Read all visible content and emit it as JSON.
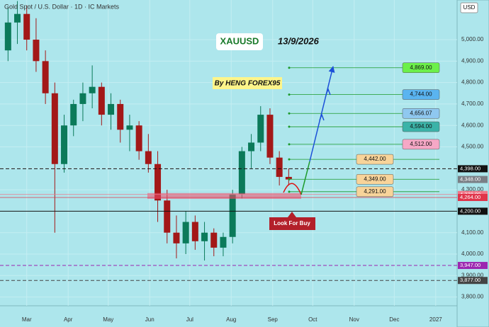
{
  "header": "Gold Spot / U.S. Dollar · 1D · IC Markets",
  "currency": "USD",
  "chart_data": {
    "type": "candlestick",
    "title": "XAUUSD",
    "date": "13/9/2026",
    "author": "By HENG FOREX95",
    "annotation": "Look For Buy",
    "xlim": [
      -20,
      322
    ],
    "xticks": [
      {
        "value": 0,
        "label": "Mar"
      },
      {
        "value": 31,
        "label": "Apr"
      },
      {
        "value": 61,
        "label": "May"
      },
      {
        "value": 92,
        "label": "Jun"
      },
      {
        "value": 122,
        "label": "Jul"
      },
      {
        "value": 153,
        "label": "Aug"
      },
      {
        "value": 184,
        "label": "Sep"
      },
      {
        "value": 214,
        "label": "Oct"
      },
      {
        "value": 245,
        "label": "Nov"
      },
      {
        "value": 275,
        "label": "Dec"
      },
      {
        "value": 306,
        "label": "2027"
      }
    ],
    "ylim": [
      3759,
      5185
    ],
    "yticks": [
      {
        "value": 3800,
        "label": "3,800.00"
      },
      {
        "value": 3900,
        "label": "3,900.00"
      },
      {
        "value": 4000,
        "label": "4,000.00"
      },
      {
        "value": 4100,
        "label": "4,100.00"
      },
      {
        "value": 4200,
        "label": "4,200.00"
      },
      {
        "value": 4300,
        "label": "4,300.00"
      },
      {
        "value": 4400,
        "label": "4,400.00"
      },
      {
        "value": 4500,
        "label": "4,500.00"
      },
      {
        "value": 4600,
        "label": "4,600.00"
      },
      {
        "value": 4700,
        "label": "4,700.00"
      },
      {
        "value": 4800,
        "label": "4,800.00"
      },
      {
        "value": 4900,
        "label": "4,900.00"
      },
      {
        "value": 5000,
        "label": "5,000.00"
      }
    ],
    "grid": true,
    "up_color": "#0b7a5a",
    "down_color": "#a31818",
    "candles": {
      "x": [
        -14,
        -7,
        0,
        7,
        14,
        21,
        28,
        35,
        42,
        49,
        56,
        63,
        70,
        77,
        84,
        91,
        98,
        105,
        112,
        119,
        126,
        133,
        140,
        147,
        154,
        161,
        168,
        175,
        182,
        189,
        196
      ],
      "open": [
        4950,
        5080,
        5120,
        5000,
        4900,
        4750,
        4420,
        4600,
        4700,
        4750,
        4780,
        4650,
        4700,
        4580,
        4600,
        4480,
        4420,
        4250,
        4100,
        4050,
        4150,
        4060,
        4100,
        4030,
        4080,
        4280,
        4480,
        4520,
        4650,
        4450,
        4360
      ],
      "high": [
        5150,
        5180,
        5160,
        5100,
        4950,
        4800,
        4650,
        4720,
        4800,
        4880,
        4800,
        4750,
        4720,
        4650,
        4620,
        4560,
        4480,
        4300,
        4180,
        4200,
        4180,
        4150,
        4120,
        4100,
        4300,
        4500,
        4560,
        4690,
        4680,
        4480,
        4400
      ],
      "low": [
        4900,
        4980,
        4950,
        4850,
        4700,
        4100,
        4380,
        4550,
        4620,
        4680,
        4600,
        4580,
        4520,
        4480,
        4440,
        4380,
        4150,
        4050,
        3980,
        4000,
        4020,
        3970,
        3990,
        3990,
        4050,
        4260,
        4400,
        4480,
        4420,
        4320,
        4320
      ],
      "close": [
        5080,
        5120,
        5000,
        4900,
        4750,
        4420,
        4600,
        4700,
        4750,
        4780,
        4650,
        4700,
        4580,
        4600,
        4480,
        4420,
        4250,
        4100,
        4050,
        4150,
        4060,
        4100,
        4030,
        4080,
        4280,
        4480,
        4520,
        4650,
        4450,
        4360,
        4348
      ]
    },
    "levels": [
      {
        "value": 4398,
        "label": "4,398.00",
        "color": "#111111",
        "style": "dashed"
      },
      {
        "value": 4348,
        "label": "4,348.00",
        "color": "#7a7f86",
        "style": "none"
      },
      {
        "value": 4278,
        "label": "4,278.00",
        "color": "#f0788a",
        "style": "zone"
      },
      {
        "value": 4264,
        "label": "4,264.00",
        "color": "#e0344a",
        "style": "zone"
      },
      {
        "value": 4200,
        "label": "4,200.00",
        "color": "#111111",
        "style": "solid"
      },
      {
        "value": 3947,
        "label": "3,947.00",
        "color": "#9c27b0",
        "style": "dashed"
      },
      {
        "value": 3877,
        "label": "3,877.00",
        "color": "#444444",
        "style": "dashed"
      }
    ],
    "targets": [
      {
        "value": 4869,
        "label": "4,869.00",
        "color": "#6cf04a"
      },
      {
        "value": 4744,
        "label": "4,744.00",
        "color": "#5ab4f0"
      },
      {
        "value": 4656.07,
        "label": "4,656.07",
        "color": "#8fc8f0"
      },
      {
        "value": 4594,
        "label": "4,594.00",
        "color": "#3bb3a8"
      },
      {
        "value": 4512,
        "label": "4,512.00",
        "color": "#f6a8c6"
      },
      {
        "value": 4442,
        "label": "4,442.00",
        "color": "#f8d49a"
      },
      {
        "value": 4349,
        "label": "4,349.00",
        "color": "#f8d49a"
      },
      {
        "value": 4291,
        "label": "4,291.00",
        "color": "#f8d49a"
      }
    ]
  }
}
